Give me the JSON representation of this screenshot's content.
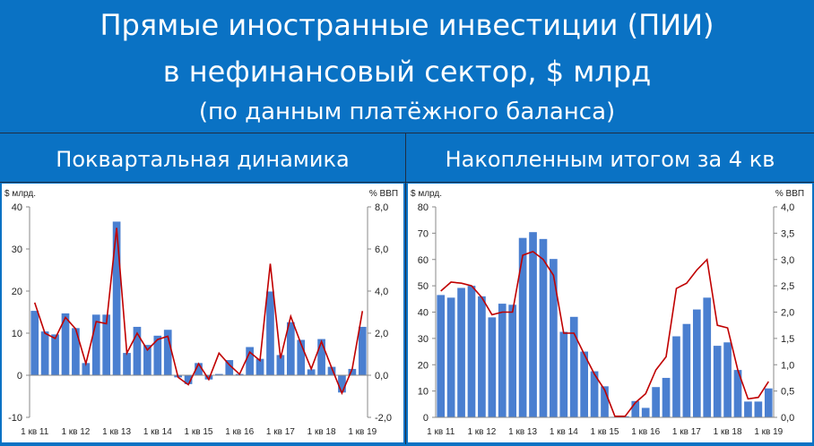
{
  "header": {
    "line1": "Прямые иностранные инвестиции (ПИИ)",
    "line2": "в нефинансовый сектор, $ млрд",
    "line3": "(по данным платёжного баланса)"
  },
  "colors": {
    "background": "#0A72C4",
    "bar": "#4A7FD0",
    "line": "#C00000"
  },
  "chart_data": [
    {
      "type": "bar",
      "subtitle": "Поквартальная динамика",
      "ylabel_left": "$ млрд.",
      "ylabel_right": "% ВВП",
      "ylim": [
        -10,
        40
      ],
      "y_ticks": [
        "-10",
        "0",
        "10",
        "20",
        "30",
        "40"
      ],
      "ylim_right": [
        -2,
        8
      ],
      "y_ticks_right": [
        "-2,0",
        "0,0",
        "2,0",
        "4,0",
        "6,0",
        "8,0"
      ],
      "x_tick_labels": [
        "1 кв 11",
        "1 кв 12",
        "1 кв 13",
        "1 кв 14",
        "1 кв 15",
        "1 кв 16",
        "1 кв 17",
        "1 кв 18",
        "1 кв 19"
      ],
      "series": [
        {
          "type": "bar",
          "axis": "left",
          "values": [
            15.3,
            10.4,
            9.7,
            14.7,
            11.2,
            2.9,
            14.4,
            14.4,
            36.5,
            5.3,
            11.5,
            7.2,
            9.4,
            10.8,
            -0.5,
            -2.1,
            2.9,
            -1.0,
            0.3,
            3.6,
            0.3,
            6.7,
            3.9,
            19.9,
            4.8,
            12.6,
            8.4,
            1.4,
            8.6,
            2.0,
            -4.1,
            1.5,
            11.5
          ]
        },
        {
          "type": "line",
          "axis": "right",
          "values": [
            3.45,
            2.0,
            1.75,
            2.75,
            2.2,
            0.55,
            2.55,
            2.45,
            7.0,
            1.05,
            2.0,
            1.2,
            1.7,
            1.85,
            -0.1,
            -0.45,
            0.55,
            -0.2,
            1.05,
            0.5,
            0.05,
            1.1,
            0.7,
            5.3,
            0.8,
            2.8,
            1.5,
            0.3,
            1.6,
            0.35,
            -0.85,
            0.3,
            3.05
          ]
        }
      ]
    },
    {
      "type": "bar",
      "subtitle": "Накопленным итогом за 4 кв",
      "ylabel_left": "$ млрд.",
      "ylabel_right": "% ВВП",
      "ylim": [
        0,
        80
      ],
      "y_ticks": [
        "0",
        "10",
        "20",
        "30",
        "40",
        "50",
        "60",
        "70",
        "80"
      ],
      "ylim_right": [
        0,
        4
      ],
      "y_ticks_right": [
        "0,0",
        "0,5",
        "1,0",
        "1,5",
        "2,0",
        "2,5",
        "3,0",
        "3,5",
        "4,0"
      ],
      "x_tick_labels": [
        "1 кв 11",
        "1 кв 12",
        "1 кв 13",
        "1 кв 14",
        "1 кв 15",
        "1 кв 16",
        "1 кв 17",
        "1 кв 18",
        "1 кв 19"
      ],
      "series": [
        {
          "type": "bar",
          "axis": "left",
          "values": [
            46.5,
            45.5,
            49.2,
            50.0,
            46.0,
            38.0,
            43.2,
            42.8,
            68.2,
            70.4,
            67.8,
            60.2,
            32.5,
            38.2,
            25.0,
            17.5,
            11.8,
            0.2,
            0.4,
            6.2,
            3.6,
            11.5,
            15.0,
            30.8,
            35.5,
            41.0,
            45.5,
            27.2,
            28.5,
            18.0,
            6.0,
            6.0,
            11.0
          ]
        },
        {
          "type": "line",
          "axis": "right",
          "values": [
            2.4,
            2.57,
            2.55,
            2.5,
            2.28,
            1.95,
            2.0,
            2.0,
            3.08,
            3.15,
            3.0,
            2.7,
            1.6,
            1.6,
            1.2,
            0.82,
            0.52,
            0.02,
            0.02,
            0.28,
            0.45,
            0.9,
            1.15,
            2.45,
            2.55,
            2.8,
            3.0,
            1.75,
            1.7,
            0.9,
            0.35,
            0.38,
            0.68
          ]
        }
      ]
    }
  ]
}
